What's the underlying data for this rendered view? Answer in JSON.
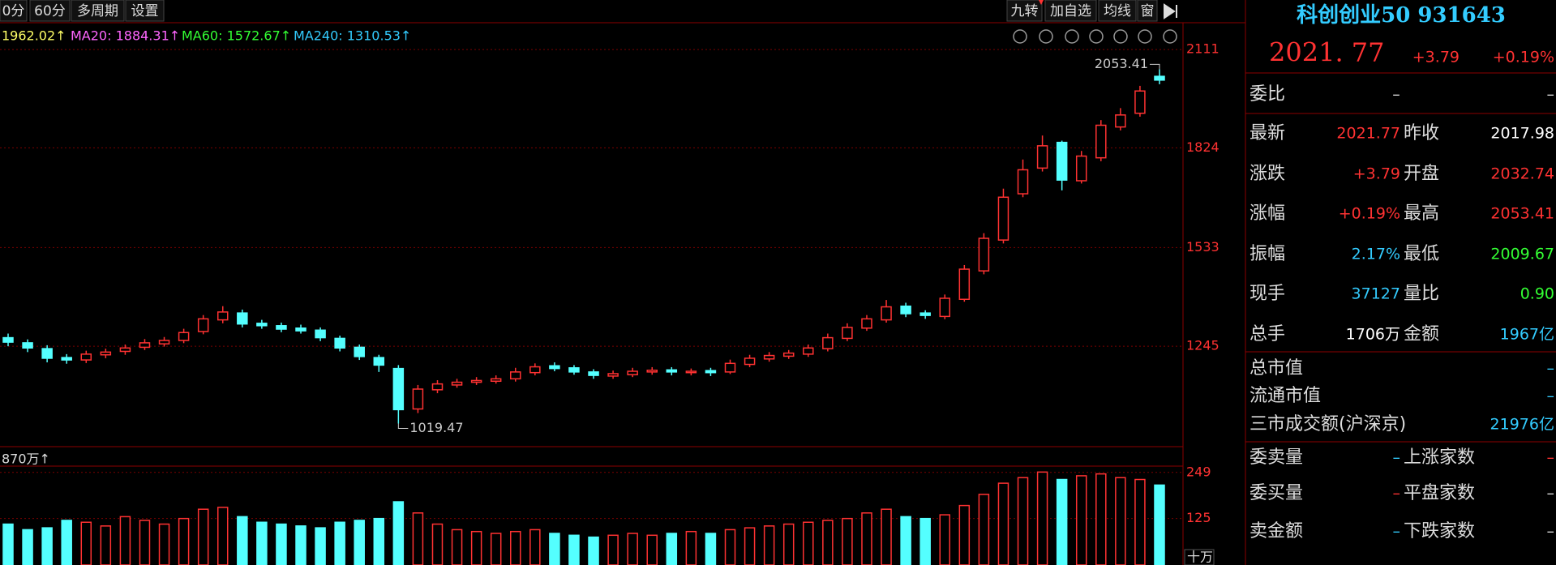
{
  "toolbar": {
    "left": [
      "0分",
      "60分",
      "多周期",
      "设置"
    ],
    "right": [
      "九转",
      "加自选",
      "均线",
      "窗"
    ]
  },
  "ma_legend": [
    "1962.02↑",
    "MA20: 1884.31↑",
    "MA60: 1572.67↑",
    "MA240: 1310.53↑"
  ],
  "chart_data": [
    {
      "type": "candlestick",
      "up_color": "#ff3232",
      "down_color": "#54ffff",
      "grid": true,
      "ylim": [
        952,
        2168
      ],
      "yticks": [
        1245,
        1533,
        1824,
        2111
      ],
      "high_label": "2053.41",
      "low_label": "1019.47",
      "open": [
        1270,
        1255,
        1238,
        1212,
        1205,
        1220,
        1230,
        1242,
        1252,
        1262,
        1288,
        1322,
        1342,
        1312,
        1305,
        1298,
        1292,
        1268,
        1242,
        1212,
        1180,
        1062,
        1118,
        1132,
        1140,
        1143,
        1150,
        1168,
        1188,
        1182,
        1170,
        1158,
        1162,
        1170,
        1176,
        1168,
        1174,
        1170,
        1192,
        1208,
        1216,
        1222,
        1238,
        1268,
        1298,
        1322,
        1362,
        1342,
        1332,
        1382,
        1465,
        1555,
        1690,
        1765,
        1840,
        1728,
        1795,
        1885,
        1925,
        2032.74
      ],
      "high": [
        1282,
        1265,
        1248,
        1222,
        1232,
        1238,
        1250,
        1266,
        1272,
        1296,
        1336,
        1362,
        1352,
        1322,
        1314,
        1308,
        1300,
        1276,
        1250,
        1220,
        1190,
        1132,
        1146,
        1150,
        1155,
        1160,
        1182,
        1195,
        1198,
        1190,
        1178,
        1174,
        1182,
        1184,
        1184,
        1180,
        1182,
        1206,
        1220,
        1228,
        1234,
        1250,
        1282,
        1312,
        1336,
        1380,
        1372,
        1350,
        1396,
        1482,
        1575,
        1705,
        1790,
        1860,
        1845,
        1815,
        1905,
        1940,
        2005,
        2053.41
      ],
      "low": [
        1245,
        1228,
        1198,
        1194,
        1196,
        1210,
        1220,
        1234,
        1244,
        1254,
        1280,
        1312,
        1300,
        1296,
        1286,
        1282,
        1260,
        1230,
        1205,
        1170,
        1019.47,
        1050,
        1108,
        1124,
        1132,
        1136,
        1142,
        1160,
        1172,
        1162,
        1150,
        1150,
        1155,
        1162,
        1160,
        1160,
        1158,
        1164,
        1184,
        1200,
        1208,
        1214,
        1230,
        1260,
        1290,
        1314,
        1330,
        1325,
        1324,
        1375,
        1455,
        1545,
        1680,
        1755,
        1700,
        1720,
        1785,
        1875,
        1915,
        2009.67
      ],
      "close": [
        1257,
        1240,
        1210,
        1205,
        1222,
        1228,
        1240,
        1255,
        1262,
        1285,
        1325,
        1345,
        1310,
        1305,
        1295,
        1290,
        1270,
        1240,
        1215,
        1190,
        1060,
        1120,
        1135,
        1140,
        1145,
        1150,
        1170,
        1185,
        1180,
        1170,
        1160,
        1165,
        1172,
        1175,
        1170,
        1172,
        1168,
        1195,
        1210,
        1218,
        1225,
        1240,
        1270,
        1300,
        1325,
        1360,
        1340,
        1335,
        1385,
        1470,
        1560,
        1680,
        1760,
        1830,
        1730,
        1800,
        1890,
        1920,
        1990,
        2021.77
      ]
    },
    {
      "type": "bar",
      "label": "870万↑",
      "unit_label": "十万",
      "ylim": [
        0,
        266
      ],
      "yticks": [
        249,
        125
      ],
      "values": [
        110,
        95,
        100,
        120,
        115,
        105,
        130,
        120,
        110,
        125,
        150,
        155,
        130,
        115,
        110,
        105,
        100,
        115,
        120,
        125,
        170,
        140,
        110,
        95,
        90,
        85,
        90,
        95,
        85,
        80,
        75,
        80,
        85,
        80,
        85,
        90,
        85,
        95,
        100,
        105,
        110,
        115,
        120,
        125,
        140,
        150,
        130,
        125,
        135,
        160,
        190,
        220,
        235,
        250,
        230,
        240,
        245,
        235,
        230,
        215
      ]
    }
  ],
  "quote": {
    "name": "科创创业50 931643",
    "price": "2021. 77",
    "change": "+3.79",
    "change_pct": "+0.19%",
    "ratio": [
      "委比",
      "–",
      "–"
    ],
    "rows": [
      [
        "最新",
        "2021.77",
        "昨收",
        "2017.98"
      ],
      [
        "涨跌",
        "+3.79",
        "开盘",
        "2032.74"
      ],
      [
        "涨幅",
        "+0.19%",
        "最高",
        "2053.41"
      ],
      [
        "振幅",
        "2.17%",
        "最低",
        "2009.67"
      ],
      [
        "现手",
        "37127",
        "量比",
        "0.90"
      ],
      [
        "总手",
        "1706万",
        "金额",
        "1967亿"
      ]
    ],
    "market": [
      [
        "总市值",
        "–"
      ],
      [
        "流通市值",
        "–"
      ],
      [
        "三市成交额(沪深京)",
        "21976亿"
      ]
    ],
    "orders": [
      [
        "委卖量",
        "–",
        "上涨家数",
        "–"
      ],
      [
        "委买量",
        "–",
        "平盘家数",
        "–"
      ],
      [
        "卖金额",
        "–",
        "下跌家数",
        "–"
      ]
    ]
  }
}
